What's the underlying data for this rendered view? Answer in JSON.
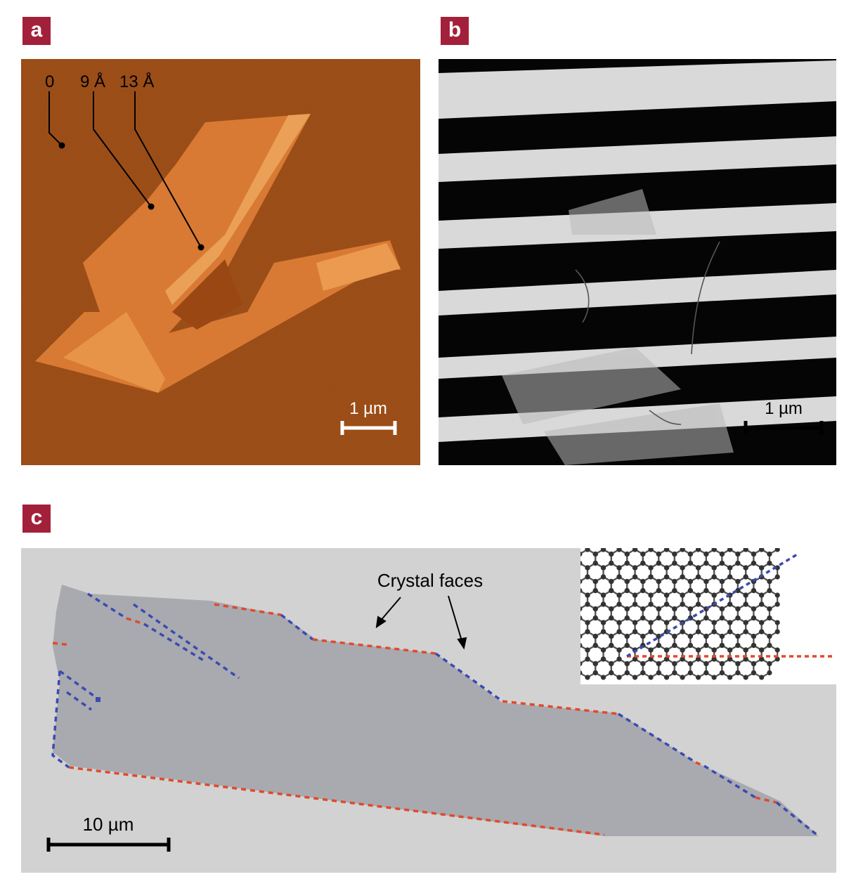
{
  "figure": {
    "panel_a": {
      "label": "a",
      "height_labels": [
        "0",
        "9 Å",
        "13 Å"
      ],
      "scale_bar": "1 µm"
    },
    "panel_b": {
      "label": "b",
      "scale_bar": "1 µm"
    },
    "panel_c": {
      "label": "c",
      "annotation": "Crystal faces",
      "scale_bar": "10 µm"
    },
    "colors": {
      "label_bg": "#a3203a",
      "afm_background": "#9a4714",
      "afm_flake": "#e58c3e",
      "edge_zigzag": "#3c4ab0",
      "edge_armchair": "#e04a2a"
    }
  }
}
